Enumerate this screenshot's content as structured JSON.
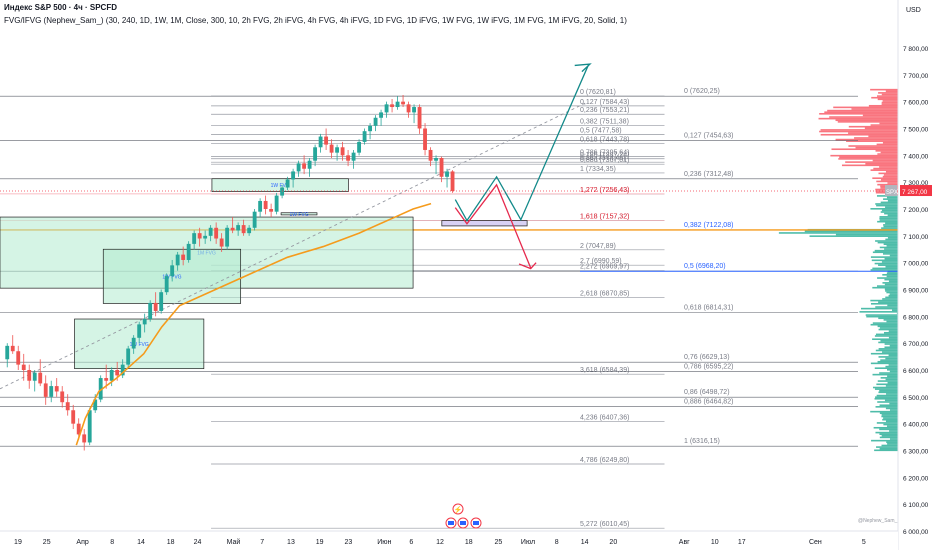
{
  "header": {
    "title": "Индекс S&P 500 · 4ч · SPCFD",
    "indicator": "FVG/IFVG (Nephew_Sam_) (30, 240, 1D, 1W, 1M, Close, 300, 10, 2h FVG, 2h iFVG, 4h FVG, 4h iFVG, 1D FVG, 1D iFVG, 1W FVG, 1W iFVG, 1M FVG, 1M iFVG, 20, Solid, 1)"
  },
  "currency": "USD",
  "watermark": "@Nephew_Sam_",
  "colors": {
    "up": "#26a69a",
    "down": "#ef5350",
    "ma": "#f59b1c",
    "fib_left": "#787b86",
    "fib_blue": "#2962ff",
    "fvg_fill": "rgba(178,235,208,0.55)",
    "fvg_border": "#1e1e1e",
    "ifvg": "rgba(199,190,240,0.7)",
    "price_tag": "#f23645",
    "proj_up": "#138a8a",
    "proj_down": "#e6294d"
  },
  "price_badge": {
    "symbol": "SPX",
    "price": "7 267,00"
  },
  "chart_data": {
    "type": "candlestick",
    "y_axis": {
      "min": 6000,
      "max": 7800,
      "ticks": [
        6000,
        6100,
        6200,
        6300,
        6400,
        6500,
        6600,
        6700,
        6800,
        6900,
        7000,
        7100,
        7200,
        7300,
        7400,
        7500,
        7600,
        7700,
        7800
      ],
      "tick_labels": [
        "6 000,00",
        "6 100,00",
        "6 200,00",
        "6 300,00",
        "6 400,00",
        "6 500,00",
        "6 600,00",
        "6 700,00",
        "6 800,00",
        "6 900,00",
        "7 000,00",
        "7 100,00",
        "7 200,00",
        "7 300,00",
        "7 400,00",
        "7 500,00",
        "7 600,00",
        "7 700,00",
        "7 800,00"
      ]
    },
    "x_axis": {
      "labels": [
        {
          "t": "19",
          "x": 0.02
        },
        {
          "t": "25",
          "x": 0.052
        },
        {
          "t": "Апр",
          "x": 0.092
        },
        {
          "t": "8",
          "x": 0.125
        },
        {
          "t": "14",
          "x": 0.157
        },
        {
          "t": "18",
          "x": 0.19
        },
        {
          "t": "24",
          "x": 0.22
        },
        {
          "t": "Май",
          "x": 0.26
        },
        {
          "t": "7",
          "x": 0.292
        },
        {
          "t": "13",
          "x": 0.324
        },
        {
          "t": "19",
          "x": 0.356
        },
        {
          "t": "23",
          "x": 0.388
        },
        {
          "t": "Июн",
          "x": 0.428
        },
        {
          "t": "6",
          "x": 0.458
        },
        {
          "t": "12",
          "x": 0.49
        },
        {
          "t": "18",
          "x": 0.522
        },
        {
          "t": "25",
          "x": 0.555
        },
        {
          "t": "Июл",
          "x": 0.588
        },
        {
          "t": "8",
          "x": 0.62
        },
        {
          "t": "14",
          "x": 0.651
        },
        {
          "t": "20",
          "x": 0.683
        },
        {
          "t": "Авг",
          "x": 0.762
        },
        {
          "t": "10",
          "x": 0.796
        },
        {
          "t": "17",
          "x": 0.826
        },
        {
          "t": "Сен",
          "x": 0.908
        },
        {
          "t": "5",
          "x": 0.962
        }
      ]
    },
    "candles": [
      [
        6640,
        6700,
        6610,
        6690
      ],
      [
        6690,
        6730,
        6660,
        6670
      ],
      [
        6670,
        6690,
        6600,
        6620
      ],
      [
        6620,
        6660,
        6560,
        6600
      ],
      [
        6600,
        6620,
        6530,
        6560
      ],
      [
        6560,
        6600,
        6520,
        6590
      ],
      [
        6590,
        6640,
        6540,
        6550
      ],
      [
        6550,
        6580,
        6470,
        6500
      ],
      [
        6500,
        6560,
        6480,
        6540
      ],
      [
        6540,
        6570,
        6500,
        6520
      ],
      [
        6520,
        6540,
        6460,
        6480
      ],
      [
        6480,
        6510,
        6430,
        6450
      ],
      [
        6450,
        6470,
        6380,
        6400
      ],
      [
        6400,
        6420,
        6340,
        6360
      ],
      [
        6360,
        6380,
        6300,
        6330
      ],
      [
        6330,
        6460,
        6320,
        6450
      ],
      [
        6450,
        6510,
        6440,
        6490
      ],
      [
        6490,
        6580,
        6480,
        6570
      ],
      [
        6570,
        6620,
        6530,
        6560
      ],
      [
        6560,
        6610,
        6540,
        6600
      ],
      [
        6600,
        6630,
        6560,
        6580
      ],
      [
        6580,
        6640,
        6570,
        6620
      ],
      [
        6620,
        6690,
        6610,
        6680
      ],
      [
        6680,
        6730,
        6660,
        6720
      ],
      [
        6720,
        6780,
        6700,
        6770
      ],
      [
        6770,
        6810,
        6740,
        6790
      ],
      [
        6790,
        6860,
        6780,
        6850
      ],
      [
        6850,
        6890,
        6800,
        6820
      ],
      [
        6820,
        6900,
        6810,
        6890
      ],
      [
        6890,
        6960,
        6880,
        6950
      ],
      [
        6950,
        7010,
        6930,
        6990
      ],
      [
        6990,
        7040,
        6970,
        7030
      ],
      [
        7030,
        7060,
        6990,
        7010
      ],
      [
        7010,
        7080,
        7000,
        7070
      ],
      [
        7070,
        7120,
        7050,
        7110
      ],
      [
        7110,
        7130,
        7060,
        7090
      ],
      [
        7090,
        7120,
        7070,
        7100
      ],
      [
        7100,
        7140,
        7080,
        7130
      ],
      [
        7130,
        7150,
        7070,
        7090
      ],
      [
        7090,
        7110,
        7040,
        7060
      ],
      [
        7060,
        7140,
        7050,
        7130
      ],
      [
        7130,
        7170,
        7110,
        7120
      ],
      [
        7120,
        7150,
        7100,
        7140
      ],
      [
        7140,
        7160,
        7100,
        7110
      ],
      [
        7110,
        7140,
        7100,
        7130
      ],
      [
        7130,
        7200,
        7120,
        7190
      ],
      [
        7190,
        7240,
        7170,
        7230
      ],
      [
        7230,
        7250,
        7180,
        7200
      ],
      [
        7200,
        7220,
        7170,
        7190
      ],
      [
        7190,
        7260,
        7180,
        7250
      ],
      [
        7250,
        7290,
        7240,
        7280
      ],
      [
        7280,
        7320,
        7270,
        7310
      ],
      [
        7310,
        7350,
        7280,
        7340
      ],
      [
        7340,
        7380,
        7320,
        7370
      ],
      [
        7370,
        7400,
        7330,
        7350
      ],
      [
        7350,
        7390,
        7320,
        7380
      ],
      [
        7380,
        7440,
        7360,
        7430
      ],
      [
        7430,
        7480,
        7410,
        7470
      ],
      [
        7470,
        7500,
        7420,
        7440
      ],
      [
        7440,
        7460,
        7390,
        7410
      ],
      [
        7410,
        7440,
        7380,
        7430
      ],
      [
        7430,
        7450,
        7380,
        7400
      ],
      [
        7400,
        7420,
        7360,
        7380
      ],
      [
        7380,
        7420,
        7350,
        7410
      ],
      [
        7410,
        7460,
        7400,
        7450
      ],
      [
        7450,
        7500,
        7440,
        7490
      ],
      [
        7490,
        7520,
        7460,
        7510
      ],
      [
        7510,
        7550,
        7490,
        7540
      ],
      [
        7540,
        7570,
        7510,
        7560
      ],
      [
        7560,
        7600,
        7540,
        7590
      ],
      [
        7590,
        7610,
        7560,
        7580
      ],
      [
        7580,
        7620,
        7570,
        7600
      ],
      [
        7600,
        7625,
        7580,
        7590
      ],
      [
        7590,
        7600,
        7540,
        7560
      ],
      [
        7560,
        7590,
        7520,
        7580
      ],
      [
        7580,
        7590,
        7480,
        7500
      ],
      [
        7500,
        7520,
        7400,
        7420
      ],
      [
        7420,
        7430,
        7360,
        7380
      ],
      [
        7380,
        7400,
        7330,
        7390
      ],
      [
        7390,
        7395,
        7300,
        7320
      ],
      [
        7320,
        7350,
        7280,
        7340
      ],
      [
        7340,
        7345,
        7260,
        7267
      ]
    ],
    "ma_line": [
      [
        0.085,
        6320
      ],
      [
        0.095,
        6420
      ],
      [
        0.11,
        6520
      ],
      [
        0.13,
        6570
      ],
      [
        0.16,
        6660
      ],
      [
        0.18,
        6760
      ],
      [
        0.2,
        6840
      ],
      [
        0.24,
        6900
      ],
      [
        0.28,
        6960
      ],
      [
        0.32,
        7020
      ],
      [
        0.36,
        7060
      ],
      [
        0.4,
        7110
      ],
      [
        0.44,
        7170
      ],
      [
        0.46,
        7200
      ],
      [
        0.48,
        7220
      ]
    ],
    "fib_left": [
      {
        "label": "0 (7620,81)",
        "v": 7620.81
      },
      {
        "label": "0,127 (7584,43)",
        "v": 7584.43
      },
      {
        "label": "0,236 (7553,21)",
        "v": 7553.21
      },
      {
        "label": "0,382 (7511,38)",
        "v": 7511.38
      },
      {
        "label": "0,5 (7477,58)",
        "v": 7477.58
      },
      {
        "label": "0,618 (7443,78)",
        "v": 7443.78
      },
      {
        "label": "0,786 (7395,64)",
        "v": 7395.64
      },
      {
        "label": "0,786 (7387,24)",
        "v": 7387.24
      },
      {
        "label": "0,86 (7374,46)",
        "v": 7374.46
      },
      {
        "label": "0,886 (7367,01)",
        "v": 7367.01
      },
      {
        "label": "1 (7334,35)",
        "v": 7334.35
      },
      {
        "label": "1,272 (7256,43)",
        "v": 7256.43
      },
      {
        "label": "1,618 (7157,32)",
        "v": 7157.32
      },
      {
        "label": "2 (7047,89)",
        "v": 7047.89
      },
      {
        "label": "2,272 (6969,97)",
        "v": 6969.97
      },
      {
        "label": "2,7 (6990,59)",
        "v": 6990.59
      },
      {
        "label": "2,618 (6870,85)",
        "v": 6870.85
      },
      {
        "label": "3,618 (6584,39)",
        "v": 6584.39
      },
      {
        "label": "4,236 (6407,36)",
        "v": 6407.36
      },
      {
        "label": "4,786 (6249,80)",
        "v": 6249.8
      },
      {
        "label": "5,272 (6010,45)",
        "v": 6010.45
      }
    ],
    "fib_right": [
      {
        "label": "0 (7620,25)",
        "v": 7620.25
      },
      {
        "label": "0,127 (7454,63)",
        "v": 7454.63
      },
      {
        "label": "0,236 (7312,48)",
        "v": 7312.48
      },
      {
        "label": "0,382 (7122,08)",
        "v": 7122.08
      },
      {
        "label": "0,5 (6968,20)",
        "v": 6968.2
      },
      {
        "label": "0,618 (6814,31)",
        "v": 6814.31
      },
      {
        "label": "0,76 (6629,13)",
        "v": 6629.13
      },
      {
        "label": "0,786 (6595,22)",
        "v": 6595.22
      },
      {
        "label": "0,86 (6498,72)",
        "v": 6498.72
      },
      {
        "label": "0,886 (6464,82)",
        "v": 6464.82
      },
      {
        "label": "1 (6316,15)",
        "v": 6316.15
      }
    ],
    "fvg_zones": [
      {
        "label": "1M FVG",
        "x1": 0.0,
        "x2": 0.46,
        "y1": 6905,
        "y2": 7170
      },
      {
        "label": "1W FVG",
        "x1": 0.115,
        "x2": 0.268,
        "y1": 6848,
        "y2": 7050
      },
      {
        "label": "1W FVG",
        "x1": 0.083,
        "x2": 0.227,
        "y1": 6605,
        "y2": 6790
      },
      {
        "label": "1W FVG",
        "x1": 0.236,
        "x2": 0.388,
        "y1": 7265,
        "y2": 7313
      },
      {
        "label": "1W FVG",
        "x1": 0.313,
        "x2": 0.353,
        "y1": 7178,
        "y2": 7186
      }
    ],
    "ifvg_zone": {
      "x1": 0.492,
      "x2": 0.587,
      "y1": 7137,
      "y2": 7157
    },
    "current_price": 7267.0
  }
}
